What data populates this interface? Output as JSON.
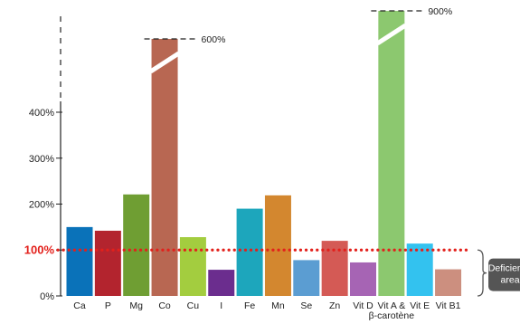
{
  "chart_data": {
    "type": "bar",
    "categories": [
      [
        "Ca"
      ],
      [
        "P"
      ],
      [
        "Mg"
      ],
      [
        "Co"
      ],
      [
        "Cu"
      ],
      [
        "I"
      ],
      [
        "Fe"
      ],
      [
        "Mn"
      ],
      [
        "Se"
      ],
      [
        "Zn"
      ],
      [
        "Vit D"
      ],
      [
        "Vit A &",
        "β-carotène"
      ],
      [
        "Vit E"
      ],
      [
        "Vit B1"
      ]
    ],
    "values": [
      150,
      142,
      221,
      600,
      128,
      57,
      190,
      219,
      78,
      120,
      73,
      900,
      114,
      58
    ],
    "colors": [
      "#0a72b9",
      "#b3242e",
      "#6f9e33",
      "#b86752",
      "#a3cd3f",
      "#6b2d8e",
      "#1da6bc",
      "#d3872f",
      "#5b9dd2",
      "#d45a55",
      "#a664b4",
      "#8cc86f",
      "#33c2ef",
      "#cc8f7f"
    ],
    "broken": [
      {
        "category_index": 3,
        "label": "600%"
      },
      {
        "category_index": 11,
        "label": "900%"
      }
    ],
    "yticks": [
      {
        "value": 0,
        "label": "0%"
      },
      {
        "value": 100,
        "label": "100%"
      },
      {
        "value": 200,
        "label": "200%"
      },
      {
        "value": 300,
        "label": "300%"
      },
      {
        "value": 400,
        "label": "400%"
      }
    ],
    "ylim": [
      0,
      620
    ],
    "reference_line": {
      "value": 100,
      "label": "100%",
      "color": "#e3201b"
    },
    "zone_label": [
      "Deficiency",
      "area"
    ],
    "zone_color": "#555555",
    "axis_color": "#222222"
  }
}
